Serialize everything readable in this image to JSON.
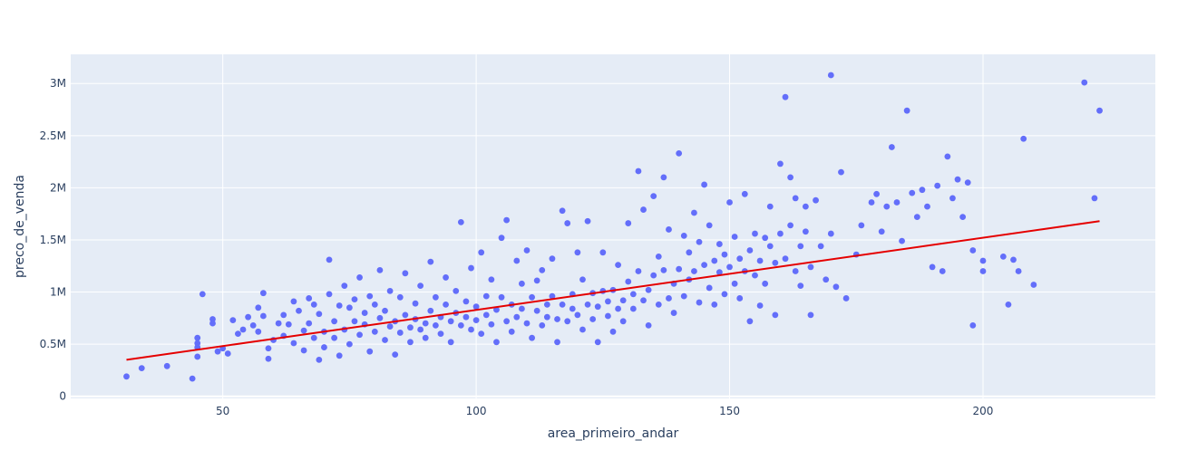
{
  "chart_data": {
    "type": "scatter",
    "title": "",
    "xlabel": "area_primeiro_andar",
    "ylabel": "preco_de_venda",
    "xlim": [
      20,
      234
    ],
    "ylim": [
      -20000,
      3280000
    ],
    "x_ticks": [
      {
        "value": 50,
        "label": "50"
      },
      {
        "value": 100,
        "label": "100"
      },
      {
        "value": 150,
        "label": "150"
      },
      {
        "value": 200,
        "label": "200"
      }
    ],
    "y_ticks": [
      {
        "value": 0,
        "label": "0"
      },
      {
        "value": 500000,
        "label": "0.5M"
      },
      {
        "value": 1000000,
        "label": "1M"
      },
      {
        "value": 1500000,
        "label": "1.5M"
      },
      {
        "value": 2000000,
        "label": "2M"
      },
      {
        "value": 2500000,
        "label": "2.5M"
      },
      {
        "value": 3000000,
        "label": "3M"
      }
    ],
    "grid": true,
    "colors": {
      "plot_bg": "#e5ecf6",
      "grid": "#ffffff",
      "points": "#636efa",
      "trendline": "#e50000"
    },
    "trendline": {
      "x": [
        31,
        223
      ],
      "y": [
        350000,
        1680000
      ]
    },
    "series": [
      {
        "points": [
          [
            31,
            190000
          ],
          [
            34,
            270000
          ],
          [
            39,
            290000
          ],
          [
            44,
            170000
          ],
          [
            45,
            380000
          ],
          [
            45,
            470000
          ],
          [
            45,
            510000
          ],
          [
            45,
            560000
          ],
          [
            46,
            980000
          ],
          [
            48,
            700000
          ],
          [
            48,
            740000
          ],
          [
            49,
            430000
          ],
          [
            50,
            460000
          ],
          [
            51,
            410000
          ],
          [
            52,
            730000
          ],
          [
            53,
            600000
          ],
          [
            54,
            640000
          ],
          [
            55,
            760000
          ],
          [
            56,
            680000
          ],
          [
            57,
            620000
          ],
          [
            57,
            850000
          ],
          [
            58,
            990000
          ],
          [
            58,
            770000
          ],
          [
            59,
            460000
          ],
          [
            59,
            360000
          ],
          [
            60,
            540000
          ],
          [
            61,
            700000
          ],
          [
            62,
            780000
          ],
          [
            62,
            580000
          ],
          [
            63,
            690000
          ],
          [
            64,
            510000
          ],
          [
            64,
            910000
          ],
          [
            65,
            820000
          ],
          [
            66,
            630000
          ],
          [
            66,
            440000
          ],
          [
            67,
            700000
          ],
          [
            67,
            940000
          ],
          [
            68,
            880000
          ],
          [
            68,
            560000
          ],
          [
            69,
            350000
          ],
          [
            69,
            790000
          ],
          [
            70,
            620000
          ],
          [
            70,
            470000
          ],
          [
            71,
            980000
          ],
          [
            71,
            1310000
          ],
          [
            72,
            720000
          ],
          [
            72,
            560000
          ],
          [
            73,
            870000
          ],
          [
            73,
            390000
          ],
          [
            74,
            640000
          ],
          [
            74,
            1060000
          ],
          [
            75,
            850000
          ],
          [
            75,
            500000
          ],
          [
            76,
            930000
          ],
          [
            76,
            720000
          ],
          [
            77,
            590000
          ],
          [
            77,
            1140000
          ],
          [
            78,
            800000
          ],
          [
            78,
            690000
          ],
          [
            79,
            430000
          ],
          [
            79,
            960000
          ],
          [
            80,
            620000
          ],
          [
            80,
            880000
          ],
          [
            81,
            750000
          ],
          [
            81,
            1210000
          ],
          [
            82,
            540000
          ],
          [
            82,
            820000
          ],
          [
            83,
            670000
          ],
          [
            83,
            1010000
          ],
          [
            84,
            720000
          ],
          [
            84,
            400000
          ],
          [
            85,
            950000
          ],
          [
            85,
            610000
          ],
          [
            86,
            780000
          ],
          [
            86,
            1180000
          ],
          [
            87,
            660000
          ],
          [
            87,
            520000
          ],
          [
            88,
            890000
          ],
          [
            88,
            740000
          ],
          [
            89,
            640000
          ],
          [
            89,
            1060000
          ],
          [
            90,
            700000
          ],
          [
            90,
            560000
          ],
          [
            91,
            820000
          ],
          [
            91,
            1290000
          ],
          [
            92,
            680000
          ],
          [
            92,
            950000
          ],
          [
            93,
            760000
          ],
          [
            93,
            600000
          ],
          [
            94,
            880000
          ],
          [
            94,
            1140000
          ],
          [
            95,
            720000
          ],
          [
            95,
            520000
          ],
          [
            96,
            800000
          ],
          [
            96,
            1010000
          ],
          [
            97,
            680000
          ],
          [
            97,
            1670000
          ],
          [
            98,
            760000
          ],
          [
            98,
            910000
          ],
          [
            99,
            640000
          ],
          [
            99,
            1230000
          ],
          [
            100,
            730000
          ],
          [
            100,
            860000
          ],
          [
            101,
            600000
          ],
          [
            101,
            1380000
          ],
          [
            102,
            780000
          ],
          [
            102,
            960000
          ],
          [
            103,
            690000
          ],
          [
            103,
            1120000
          ],
          [
            104,
            830000
          ],
          [
            104,
            520000
          ],
          [
            105,
            950000
          ],
          [
            105,
            1520000
          ],
          [
            106,
            720000
          ],
          [
            106,
            1690000
          ],
          [
            107,
            880000
          ],
          [
            107,
            620000
          ],
          [
            108,
            760000
          ],
          [
            108,
            1300000
          ],
          [
            109,
            840000
          ],
          [
            109,
            1080000
          ],
          [
            110,
            700000
          ],
          [
            110,
            1400000
          ],
          [
            111,
            950000
          ],
          [
            111,
            560000
          ],
          [
            112,
            820000
          ],
          [
            112,
            1110000
          ],
          [
            113,
            680000
          ],
          [
            113,
            1210000
          ],
          [
            114,
            880000
          ],
          [
            114,
            760000
          ],
          [
            115,
            960000
          ],
          [
            115,
            1320000
          ],
          [
            116,
            740000
          ],
          [
            116,
            520000
          ],
          [
            117,
            880000
          ],
          [
            117,
            1780000
          ],
          [
            118,
            720000
          ],
          [
            118,
            1660000
          ],
          [
            119,
            980000
          ],
          [
            119,
            840000
          ],
          [
            120,
            780000
          ],
          [
            120,
            1380000
          ],
          [
            121,
            640000
          ],
          [
            121,
            1120000
          ],
          [
            122,
            880000
          ],
          [
            122,
            1680000
          ],
          [
            123,
            740000
          ],
          [
            123,
            990000
          ],
          [
            124,
            860000
          ],
          [
            124,
            520000
          ],
          [
            125,
            1010000
          ],
          [
            125,
            1380000
          ],
          [
            126,
            770000
          ],
          [
            126,
            910000
          ],
          [
            127,
            1020000
          ],
          [
            127,
            620000
          ],
          [
            128,
            840000
          ],
          [
            128,
            1260000
          ],
          [
            129,
            920000
          ],
          [
            129,
            720000
          ],
          [
            130,
            1100000
          ],
          [
            130,
            1660000
          ],
          [
            131,
            840000
          ],
          [
            131,
            980000
          ],
          [
            132,
            1200000
          ],
          [
            132,
            2160000
          ],
          [
            133,
            920000
          ],
          [
            133,
            1790000
          ],
          [
            134,
            1020000
          ],
          [
            134,
            680000
          ],
          [
            135,
            1160000
          ],
          [
            135,
            1920000
          ],
          [
            136,
            880000
          ],
          [
            136,
            1340000
          ],
          [
            137,
            1210000
          ],
          [
            137,
            2100000
          ],
          [
            138,
            940000
          ],
          [
            138,
            1600000
          ],
          [
            139,
            1080000
          ],
          [
            139,
            800000
          ],
          [
            140,
            1220000
          ],
          [
            140,
            2330000
          ],
          [
            141,
            960000
          ],
          [
            141,
            1540000
          ],
          [
            142,
            1380000
          ],
          [
            142,
            1120000
          ],
          [
            143,
            1200000
          ],
          [
            143,
            1760000
          ],
          [
            144,
            900000
          ],
          [
            144,
            1480000
          ],
          [
            145,
            1260000
          ],
          [
            145,
            2030000
          ],
          [
            146,
            1040000
          ],
          [
            146,
            1640000
          ],
          [
            147,
            1300000
          ],
          [
            147,
            880000
          ],
          [
            148,
            1190000
          ],
          [
            148,
            1460000
          ],
          [
            149,
            1360000
          ],
          [
            149,
            980000
          ],
          [
            150,
            1240000
          ],
          [
            150,
            1860000
          ],
          [
            151,
            1080000
          ],
          [
            151,
            1530000
          ],
          [
            152,
            1320000
          ],
          [
            152,
            940000
          ],
          [
            153,
            1200000
          ],
          [
            153,
            1940000
          ],
          [
            154,
            1400000
          ],
          [
            154,
            720000
          ],
          [
            155,
            1160000
          ],
          [
            155,
            1560000
          ],
          [
            156,
            1300000
          ],
          [
            156,
            870000
          ],
          [
            157,
            1520000
          ],
          [
            157,
            1080000
          ],
          [
            158,
            1440000
          ],
          [
            158,
            1820000
          ],
          [
            159,
            1280000
          ],
          [
            159,
            780000
          ],
          [
            160,
            1560000
          ],
          [
            160,
            2230000
          ],
          [
            161,
            1320000
          ],
          [
            161,
            2870000
          ],
          [
            162,
            1640000
          ],
          [
            162,
            2100000
          ],
          [
            163,
            1200000
          ],
          [
            163,
            1900000
          ],
          [
            164,
            1440000
          ],
          [
            164,
            1060000
          ],
          [
            165,
            1820000
          ],
          [
            165,
            1580000
          ],
          [
            166,
            1240000
          ],
          [
            166,
            780000
          ],
          [
            167,
            1880000
          ],
          [
            168,
            1440000
          ],
          [
            169,
            1120000
          ],
          [
            170,
            1560000
          ],
          [
            170,
            3080000
          ],
          [
            171,
            1050000
          ],
          [
            172,
            2150000
          ],
          [
            173,
            940000
          ],
          [
            175,
            1360000
          ],
          [
            176,
            1640000
          ],
          [
            178,
            1860000
          ],
          [
            179,
            1940000
          ],
          [
            180,
            1580000
          ],
          [
            181,
            1820000
          ],
          [
            182,
            2390000
          ],
          [
            183,
            1860000
          ],
          [
            184,
            1490000
          ],
          [
            185,
            2740000
          ],
          [
            186,
            1950000
          ],
          [
            187,
            1720000
          ],
          [
            188,
            1980000
          ],
          [
            189,
            1820000
          ],
          [
            190,
            1240000
          ],
          [
            191,
            2020000
          ],
          [
            192,
            1200000
          ],
          [
            193,
            2300000
          ],
          [
            194,
            1900000
          ],
          [
            195,
            2080000
          ],
          [
            196,
            1720000
          ],
          [
            197,
            2050000
          ],
          [
            198,
            1400000
          ],
          [
            198,
            680000
          ],
          [
            200,
            1300000
          ],
          [
            200,
            1200000
          ],
          [
            204,
            1340000
          ],
          [
            205,
            880000
          ],
          [
            206,
            1310000
          ],
          [
            207,
            1200000
          ],
          [
            208,
            2470000
          ],
          [
            210,
            1070000
          ],
          [
            220,
            3010000
          ],
          [
            222,
            1900000
          ],
          [
            223,
            2740000
          ]
        ]
      }
    ]
  }
}
